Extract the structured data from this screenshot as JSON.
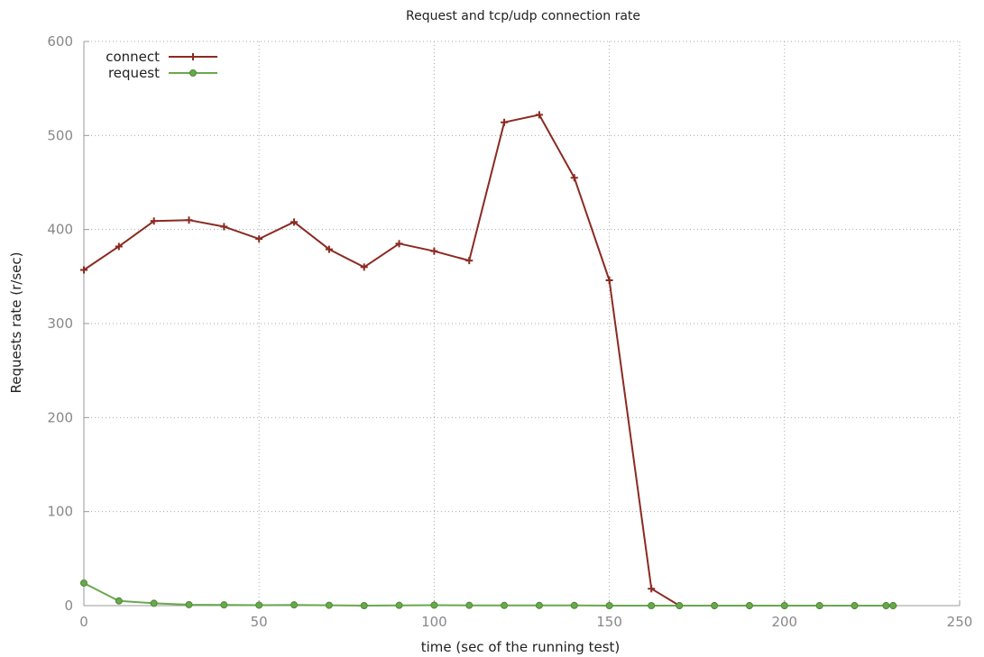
{
  "chart_data": {
    "type": "line",
    "title": "Request and tcp/udp connection rate",
    "xlabel": "time (sec of the running test)",
    "ylabel": "Requests rate (r/sec)",
    "xlim": [
      0,
      250
    ],
    "ylim": [
      0,
      600
    ],
    "xticks": [
      0,
      50,
      100,
      150,
      200,
      250
    ],
    "yticks": [
      0,
      100,
      200,
      300,
      400,
      500,
      600
    ],
    "grid": true,
    "legend_position": "top-left",
    "series": [
      {
        "name": "connect",
        "color": "#8b2a22",
        "marker": "plus",
        "x": [
          0,
          10,
          20,
          30,
          40,
          50,
          60,
          70,
          80,
          90,
          100,
          110,
          120,
          130,
          140,
          150,
          162,
          170,
          180,
          190,
          200,
          210,
          220,
          229,
          231
        ],
        "y": [
          357,
          382,
          409,
          410,
          403,
          390,
          408,
          379,
          360,
          385,
          377,
          367,
          514,
          522,
          455,
          346,
          18,
          0,
          0,
          0,
          0,
          0,
          0,
          0,
          0
        ]
      },
      {
        "name": "request",
        "color": "#6aa84f",
        "marker": "circle",
        "x": [
          0,
          10,
          20,
          30,
          40,
          50,
          60,
          70,
          80,
          90,
          100,
          110,
          120,
          130,
          140,
          150,
          162,
          170,
          180,
          190,
          200,
          210,
          220,
          229,
          231
        ],
        "y": [
          24,
          5,
          2.5,
          1,
          0.8,
          0.5,
          0.8,
          0.4,
          0,
          0.3,
          0.5,
          0.3,
          0.2,
          0.2,
          0.2,
          0,
          0,
          0,
          0,
          0,
          0,
          0,
          0,
          0,
          0
        ]
      }
    ]
  }
}
